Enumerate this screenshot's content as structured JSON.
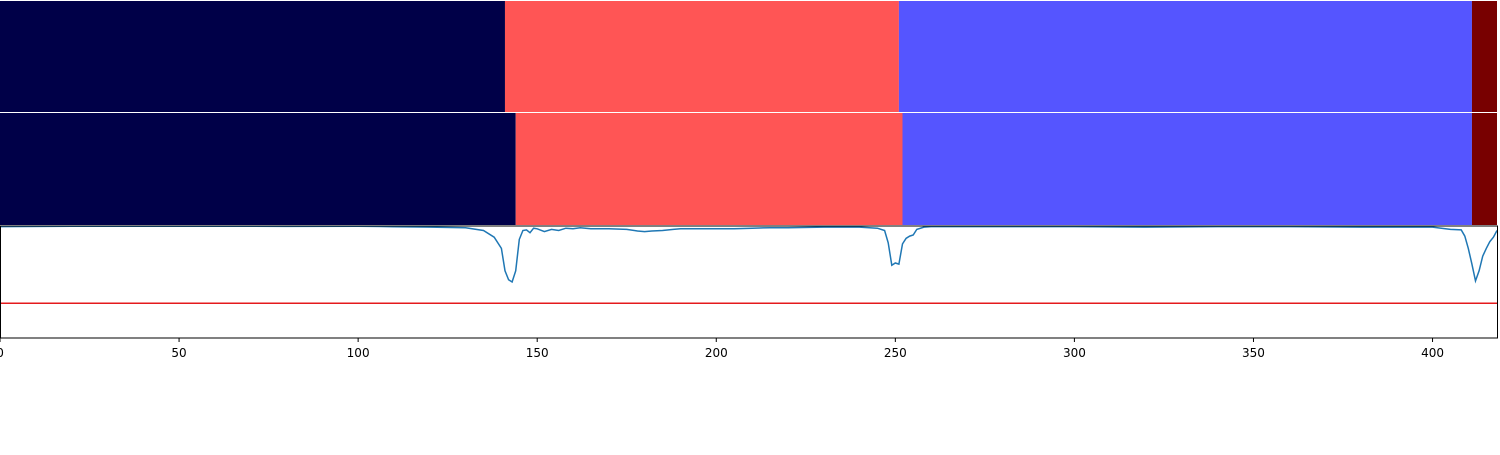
{
  "chart_data": [
    {
      "type": "segment-strip",
      "xlim": [
        0,
        418
      ],
      "segments": [
        {
          "start": 0,
          "end": 141,
          "color": "#000048"
        },
        {
          "start": 141,
          "end": 251,
          "color": "#ff5555"
        },
        {
          "start": 251,
          "end": 411,
          "color": "#5555ff"
        },
        {
          "start": 411,
          "end": 418,
          "color": "#780000"
        }
      ]
    },
    {
      "type": "segment-strip",
      "xlim": [
        0,
        418
      ],
      "segments": [
        {
          "start": 0,
          "end": 144,
          "color": "#000048"
        },
        {
          "start": 144,
          "end": 252,
          "color": "#ff5555"
        },
        {
          "start": 252,
          "end": 411,
          "color": "#5555ff"
        },
        {
          "start": 411,
          "end": 418,
          "color": "#780000"
        }
      ]
    },
    {
      "type": "line",
      "xlim": [
        0,
        418
      ],
      "ylim": [
        0,
        1
      ],
      "xticks": [
        0,
        50,
        100,
        150,
        200,
        250,
        300,
        350,
        400
      ],
      "threshold": {
        "value": 0.31,
        "color": "#e41a1c"
      },
      "line_color": "#1f77b4",
      "series": [
        {
          "x": [
            0,
            20,
            40,
            60,
            80,
            100,
            110,
            120,
            130,
            135,
            138,
            140,
            141,
            142,
            143,
            144,
            145,
            146,
            147,
            148,
            149,
            150,
            152,
            154,
            156,
            158,
            160,
            162,
            165,
            170,
            175,
            178,
            180,
            182,
            185,
            188,
            190,
            195,
            200,
            205,
            210,
            215,
            220,
            230,
            240,
            245,
            247,
            248,
            249,
            250,
            251,
            252,
            253,
            254,
            255,
            256,
            258,
            260,
            270,
            280,
            290,
            300,
            320,
            340,
            360,
            380,
            400,
            405,
            408,
            409,
            410,
            411,
            412,
            413,
            414,
            415,
            416,
            417,
            418
          ],
          "y": [
            0.995,
            0.998,
            0.997,
            0.998,
            0.996,
            0.998,
            0.994,
            0.99,
            0.985,
            0.96,
            0.9,
            0.8,
            0.6,
            0.52,
            0.5,
            0.6,
            0.88,
            0.96,
            0.965,
            0.94,
            0.98,
            0.975,
            0.95,
            0.97,
            0.96,
            0.98,
            0.975,
            0.985,
            0.975,
            0.975,
            0.97,
            0.955,
            0.95,
            0.955,
            0.96,
            0.97,
            0.975,
            0.975,
            0.975,
            0.975,
            0.98,
            0.985,
            0.985,
            0.99,
            0.99,
            0.98,
            0.96,
            0.85,
            0.65,
            0.67,
            0.66,
            0.84,
            0.89,
            0.91,
            0.92,
            0.97,
            0.99,
            0.995,
            0.995,
            0.995,
            0.995,
            0.995,
            0.99,
            0.995,
            0.995,
            0.99,
            0.99,
            0.97,
            0.965,
            0.91,
            0.8,
            0.66,
            0.51,
            0.6,
            0.73,
            0.8,
            0.86,
            0.9,
            0.96
          ]
        }
      ]
    }
  ]
}
